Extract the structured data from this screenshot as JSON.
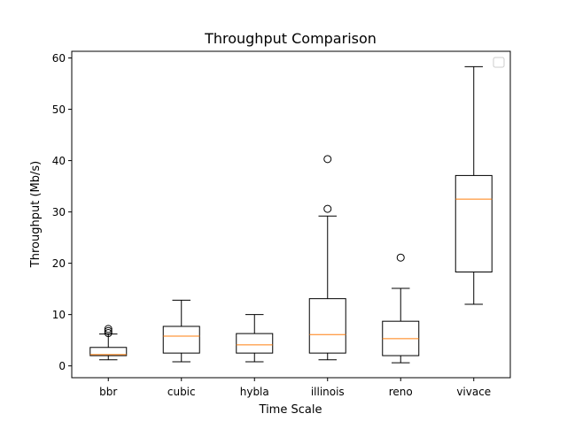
{
  "chart_data": {
    "type": "box",
    "title": "Throughput Comparison",
    "xlabel": "Time Scale",
    "ylabel": "Throughput (Mb/s)",
    "ylim": [
      -2.3,
      61.3
    ],
    "yticks": [
      0,
      10,
      20,
      30,
      40,
      50,
      60
    ],
    "legend": "top-right",
    "legend_entries": [],
    "grid": false,
    "colors": {
      "box": "#000000",
      "median": "#ff7f0e",
      "background": "#ffffff"
    },
    "categories": [
      "bbr",
      "cubic",
      "hybla",
      "illinois",
      "reno",
      "vivace"
    ],
    "boxes": [
      {
        "label": "bbr",
        "whisker_low": 1.2,
        "q1": 2.0,
        "median": 2.2,
        "q3": 3.6,
        "whisker_high": 6.2,
        "outliers": [
          6.4,
          6.8,
          7.2
        ]
      },
      {
        "label": "cubic",
        "whisker_low": 0.8,
        "q1": 2.5,
        "median": 5.8,
        "q3": 7.7,
        "whisker_high": 12.8,
        "outliers": []
      },
      {
        "label": "hybla",
        "whisker_low": 0.8,
        "q1": 2.5,
        "median": 4.1,
        "q3": 6.3,
        "whisker_high": 10.0,
        "outliers": []
      },
      {
        "label": "illinois",
        "whisker_low": 1.2,
        "q1": 2.5,
        "median": 6.1,
        "q3": 13.1,
        "whisker_high": 29.2,
        "outliers": [
          30.6,
          40.3
        ]
      },
      {
        "label": "reno",
        "whisker_low": 0.6,
        "q1": 2.0,
        "median": 5.3,
        "q3": 8.7,
        "whisker_high": 15.1,
        "outliers": [
          21.1
        ]
      },
      {
        "label": "vivace",
        "whisker_low": 12.0,
        "q1": 18.3,
        "median": 32.5,
        "q3": 37.1,
        "whisker_high": 58.3,
        "outliers": []
      }
    ]
  }
}
